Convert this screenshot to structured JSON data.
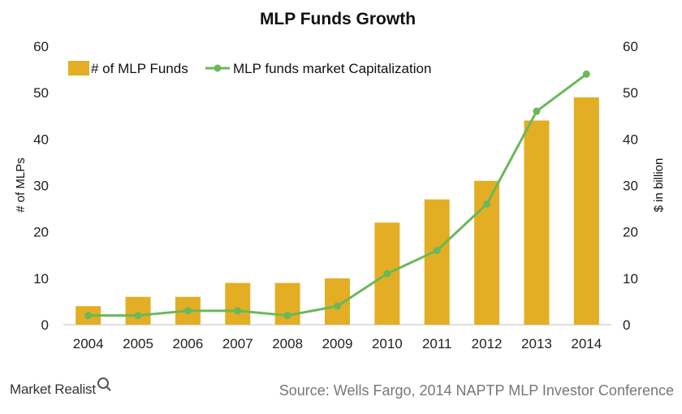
{
  "chart_data": {
    "type": "bar",
    "title": "MLP Funds Growth",
    "categories": [
      "2004",
      "2005",
      "2006",
      "2007",
      "2008",
      "2009",
      "2010",
      "2011",
      "2012",
      "2013",
      "2014"
    ],
    "series": [
      {
        "name": "# of MLP Funds",
        "type": "bar",
        "axis": "left",
        "values": [
          4,
          6,
          6,
          9,
          9,
          10,
          22,
          27,
          31,
          44,
          49
        ]
      },
      {
        "name": "MLP funds market Capitalization",
        "type": "line",
        "axis": "right",
        "values": [
          2,
          2,
          3,
          3,
          2,
          4,
          11,
          16,
          26,
          46,
          54
        ]
      }
    ],
    "ylabel": "# of MLPs",
    "y2label": "$ in billion",
    "ylim": [
      0,
      60
    ],
    "y2lim": [
      0,
      60
    ],
    "yticks": [
      0,
      10,
      20,
      30,
      40,
      50,
      60
    ],
    "y2ticks": [
      0,
      10,
      20,
      30,
      40,
      50,
      60
    ],
    "grid": false,
    "legend_position": "top-left",
    "colors": {
      "bar": "#E3AE24",
      "line": "#6BB85A",
      "axis": "#BFBFBF"
    }
  },
  "footer": {
    "brand": "Market Realist",
    "source": "Source: Wells Fargo, 2014 NAPTP MLP Investor Conference"
  }
}
